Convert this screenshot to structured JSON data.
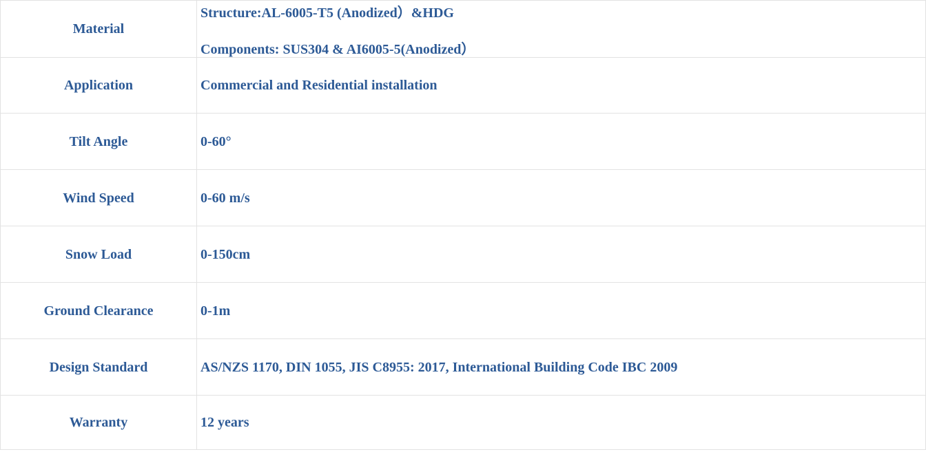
{
  "table": {
    "name": "product-specification-table",
    "text_color": "#2D5A96",
    "border_color": "#E2E2E2",
    "rows": [
      {
        "label": "Material",
        "values": [
          "Structure:AL-6005-T5 (Anodized）&HDG",
          "Components: SUS304 & AI6005-5(Anodized）"
        ]
      },
      {
        "label": "Application",
        "values": [
          "Commercial and Residential installation"
        ]
      },
      {
        "label": "Tilt Angle",
        "values": [
          "0-60°"
        ]
      },
      {
        "label": "Wind Speed",
        "values": [
          "0-60 m/s"
        ]
      },
      {
        "label": "Snow Load",
        "values": [
          "0-150cm"
        ]
      },
      {
        "label": "Ground Clearance",
        "values": [
          "0-1m"
        ]
      },
      {
        "label": "Design Standard",
        "values": [
          "AS/NZS 1170, DIN 1055, JIS C8955: 2017, International Building Code IBC 2009"
        ]
      },
      {
        "label": "Warranty",
        "values": [
          "12 years"
        ]
      }
    ]
  }
}
